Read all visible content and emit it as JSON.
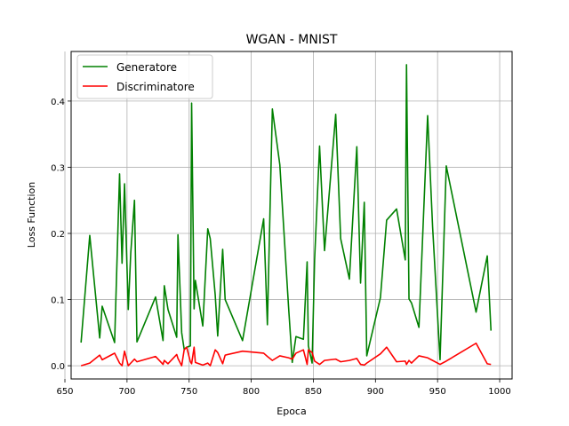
{
  "chart_data": {
    "type": "line",
    "title": "WGAN - MNIST",
    "xlabel": "Epoca",
    "ylabel": "Loss Function",
    "xlim": [
      655,
      1010
    ],
    "ylim": [
      -0.02,
      0.475
    ],
    "xticks": [
      650,
      700,
      750,
      800,
      850,
      900,
      950,
      1000
    ],
    "yticks": [
      0.0,
      0.1,
      0.2,
      0.3,
      0.4
    ],
    "grid": true,
    "legend": "top-left",
    "series": [
      {
        "name": "Generatore",
        "color": "#008000",
        "points": [
          [
            663,
            0.035
          ],
          [
            670,
            0.197
          ],
          [
            678,
            0.042
          ],
          [
            680,
            0.09
          ],
          [
            690,
            0.035
          ],
          [
            694,
            0.29
          ],
          [
            696,
            0.155
          ],
          [
            698,
            0.275
          ],
          [
            701,
            0.085
          ],
          [
            703,
            0.17
          ],
          [
            706,
            0.25
          ],
          [
            708,
            0.036
          ],
          [
            723,
            0.104
          ],
          [
            729,
            0.038
          ],
          [
            730,
            0.121
          ],
          [
            733,
            0.085
          ],
          [
            740,
            0.043
          ],
          [
            741,
            0.198
          ],
          [
            744,
            0.05
          ],
          [
            746,
            0.025
          ],
          [
            748,
            0.028
          ],
          [
            751,
            0.03
          ],
          [
            752,
            0.397
          ],
          [
            754,
            0.086
          ],
          [
            755,
            0.129
          ],
          [
            761,
            0.06
          ],
          [
            765,
            0.207
          ],
          [
            767,
            0.192
          ],
          [
            771,
            0.107
          ],
          [
            773,
            0.045
          ],
          [
            777,
            0.176
          ],
          [
            779,
            0.1
          ],
          [
            793,
            0.038
          ],
          [
            810,
            0.222
          ],
          [
            813,
            0.062
          ],
          [
            817,
            0.388
          ],
          [
            823,
            0.304
          ],
          [
            830,
            0.09
          ],
          [
            833,
            0.005
          ],
          [
            836,
            0.044
          ],
          [
            842,
            0.04
          ],
          [
            845,
            0.157
          ],
          [
            846,
            0.03
          ],
          [
            849,
            0.004
          ],
          [
            851,
            0.16
          ],
          [
            855,
            0.332
          ],
          [
            859,
            0.174
          ],
          [
            868,
            0.38
          ],
          [
            872,
            0.192
          ],
          [
            879,
            0.131
          ],
          [
            885,
            0.331
          ],
          [
            888,
            0.125
          ],
          [
            891,
            0.247
          ],
          [
            893,
            0.015
          ],
          [
            904,
            0.103
          ],
          [
            909,
            0.22
          ],
          [
            917,
            0.237
          ],
          [
            924,
            0.16
          ],
          [
            925,
            0.455
          ],
          [
            927,
            0.101
          ],
          [
            929,
            0.095
          ],
          [
            935,
            0.058
          ],
          [
            942,
            0.378
          ],
          [
            946,
            0.21
          ],
          [
            952,
            0.009
          ],
          [
            957,
            0.302
          ],
          [
            981,
            0.081
          ],
          [
            990,
            0.166
          ],
          [
            993,
            0.053
          ]
        ]
      },
      {
        "name": "Discriminatore",
        "color": "#ff0000",
        "points": [
          [
            663,
            0.0
          ],
          [
            670,
            0.004
          ],
          [
            678,
            0.016
          ],
          [
            680,
            0.009
          ],
          [
            690,
            0.019
          ],
          [
            694,
            0.004
          ],
          [
            696,
            0.0
          ],
          [
            698,
            0.022
          ],
          [
            701,
            0.0
          ],
          [
            703,
            0.004
          ],
          [
            706,
            0.01
          ],
          [
            708,
            0.006
          ],
          [
            723,
            0.014
          ],
          [
            729,
            0.002
          ],
          [
            730,
            0.008
          ],
          [
            733,
            0.003
          ],
          [
            740,
            0.017
          ],
          [
            741,
            0.011
          ],
          [
            744,
            0.0
          ],
          [
            746,
            0.024
          ],
          [
            748,
            0.028
          ],
          [
            751,
            0.006
          ],
          [
            752,
            0.003
          ],
          [
            754,
            0.028
          ],
          [
            755,
            0.005
          ],
          [
            761,
            0.001
          ],
          [
            765,
            0.004
          ],
          [
            767,
            0.0
          ],
          [
            771,
            0.024
          ],
          [
            773,
            0.02
          ],
          [
            777,
            0.003
          ],
          [
            779,
            0.016
          ],
          [
            793,
            0.022
          ],
          [
            810,
            0.019
          ],
          [
            813,
            0.014
          ],
          [
            817,
            0.008
          ],
          [
            823,
            0.015
          ],
          [
            830,
            0.012
          ],
          [
            833,
            0.01
          ],
          [
            836,
            0.019
          ],
          [
            842,
            0.024
          ],
          [
            845,
            0.002
          ],
          [
            846,
            0.024
          ],
          [
            849,
            0.02
          ],
          [
            851,
            0.007
          ],
          [
            855,
            0.002
          ],
          [
            859,
            0.008
          ],
          [
            868,
            0.01
          ],
          [
            872,
            0.006
          ],
          [
            879,
            0.008
          ],
          [
            885,
            0.011
          ],
          [
            888,
            0.002
          ],
          [
            891,
            0.001
          ],
          [
            893,
            0.004
          ],
          [
            904,
            0.018
          ],
          [
            909,
            0.028
          ],
          [
            917,
            0.006
          ],
          [
            924,
            0.007
          ],
          [
            925,
            0.002
          ],
          [
            927,
            0.008
          ],
          [
            929,
            0.004
          ],
          [
            935,
            0.015
          ],
          [
            942,
            0.012
          ],
          [
            946,
            0.008
          ],
          [
            952,
            0.002
          ],
          [
            957,
            0.007
          ],
          [
            981,
            0.034
          ],
          [
            990,
            0.003
          ],
          [
            993,
            0.002
          ]
        ]
      }
    ]
  }
}
